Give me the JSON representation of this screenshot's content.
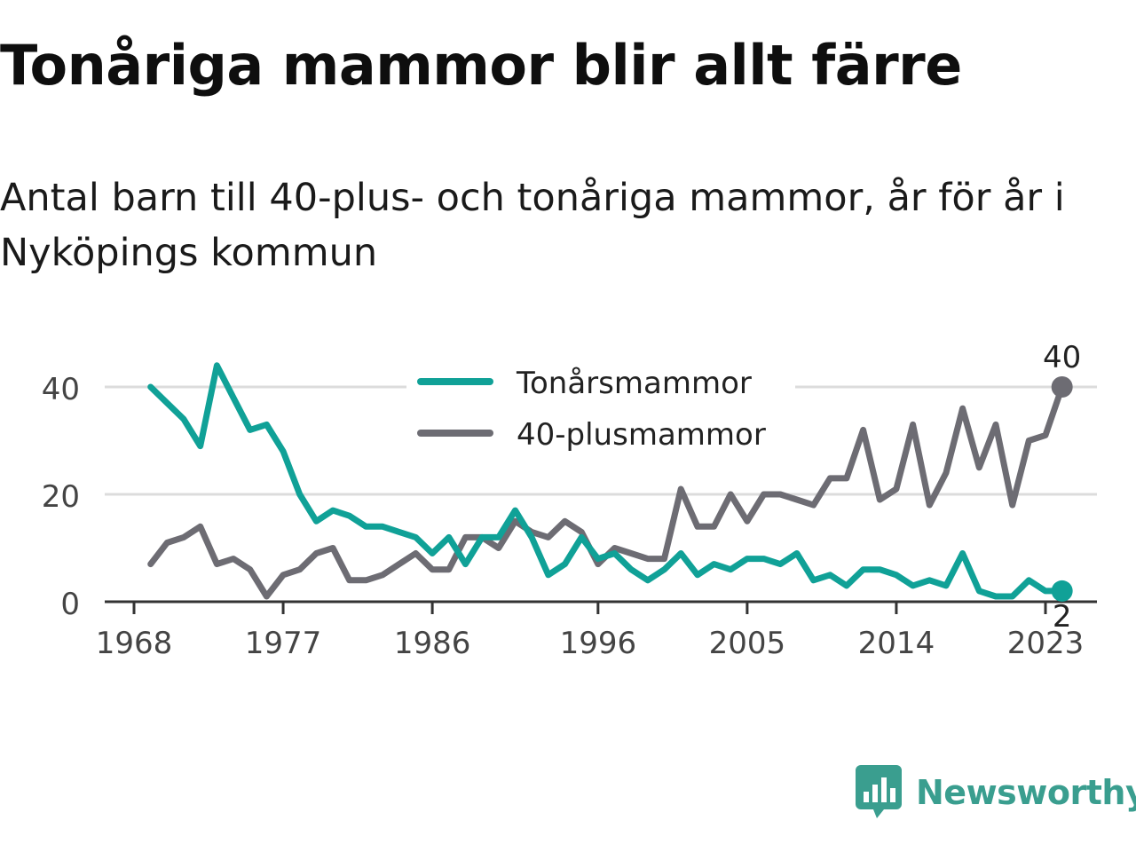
{
  "title": "Tonåriga mammor blir allt färre",
  "subtitle": "Antal barn till 40-plus- och tonåriga mammor, år för år i Nyköpings kommun",
  "brand": {
    "name": "Newsworthy"
  },
  "colors": {
    "teen": "#10a197",
    "plus40": "#6d6c73",
    "grid": "#dcdcdc",
    "axis": "#333333",
    "brand": "#3a9e8f"
  },
  "chart_data": {
    "type": "line",
    "x": [
      1969,
      1970,
      1971,
      1972,
      1973,
      1974,
      1975,
      1976,
      1977,
      1978,
      1979,
      1980,
      1981,
      1982,
      1983,
      1984,
      1985,
      1986,
      1987,
      1988,
      1989,
      1990,
      1991,
      1992,
      1993,
      1994,
      1995,
      1996,
      1997,
      1998,
      1999,
      2000,
      2001,
      2002,
      2003,
      2004,
      2005,
      2006,
      2007,
      2008,
      2009,
      2010,
      2011,
      2012,
      2013,
      2014,
      2015,
      2016,
      2017,
      2018,
      2019,
      2020,
      2021,
      2022,
      2023,
      2024
    ],
    "series": [
      {
        "name": "Tonårsmammor",
        "color": "#10a197",
        "values": [
          40,
          37,
          34,
          29,
          44,
          38,
          32,
          33,
          28,
          20,
          15,
          17,
          16,
          14,
          14,
          13,
          12,
          9,
          12,
          7,
          12,
          12,
          17,
          12,
          5,
          7,
          12,
          8,
          9,
          6,
          4,
          6,
          9,
          5,
          7,
          6,
          8,
          8,
          7,
          9,
          4,
          5,
          3,
          6,
          6,
          5,
          3,
          4,
          3,
          9,
          2,
          1,
          1,
          4,
          2,
          2
        ]
      },
      {
        "name": "40-plusmammor",
        "color": "#6d6c73",
        "values": [
          7,
          11,
          12,
          14,
          7,
          8,
          6,
          1,
          5,
          6,
          9,
          10,
          4,
          4,
          5,
          7,
          9,
          6,
          6,
          12,
          12,
          10,
          15,
          13,
          12,
          15,
          13,
          7,
          10,
          9,
          8,
          8,
          21,
          14,
          14,
          20,
          15,
          20,
          20,
          19,
          18,
          23,
          23,
          32,
          19,
          21,
          33,
          18,
          24,
          36,
          25,
          33,
          18,
          30,
          31,
          40
        ]
      }
    ],
    "x_ticks": [
      1968,
      1977,
      1986,
      1996,
      2005,
      2014,
      2023
    ],
    "y_ticks": [
      0,
      20,
      40
    ],
    "xlim": [
      1968,
      2026
    ],
    "ylim": [
      0,
      45
    ],
    "end_labels": [
      "40",
      "2"
    ],
    "legend_position": "top-center",
    "grid": "horizontal"
  }
}
